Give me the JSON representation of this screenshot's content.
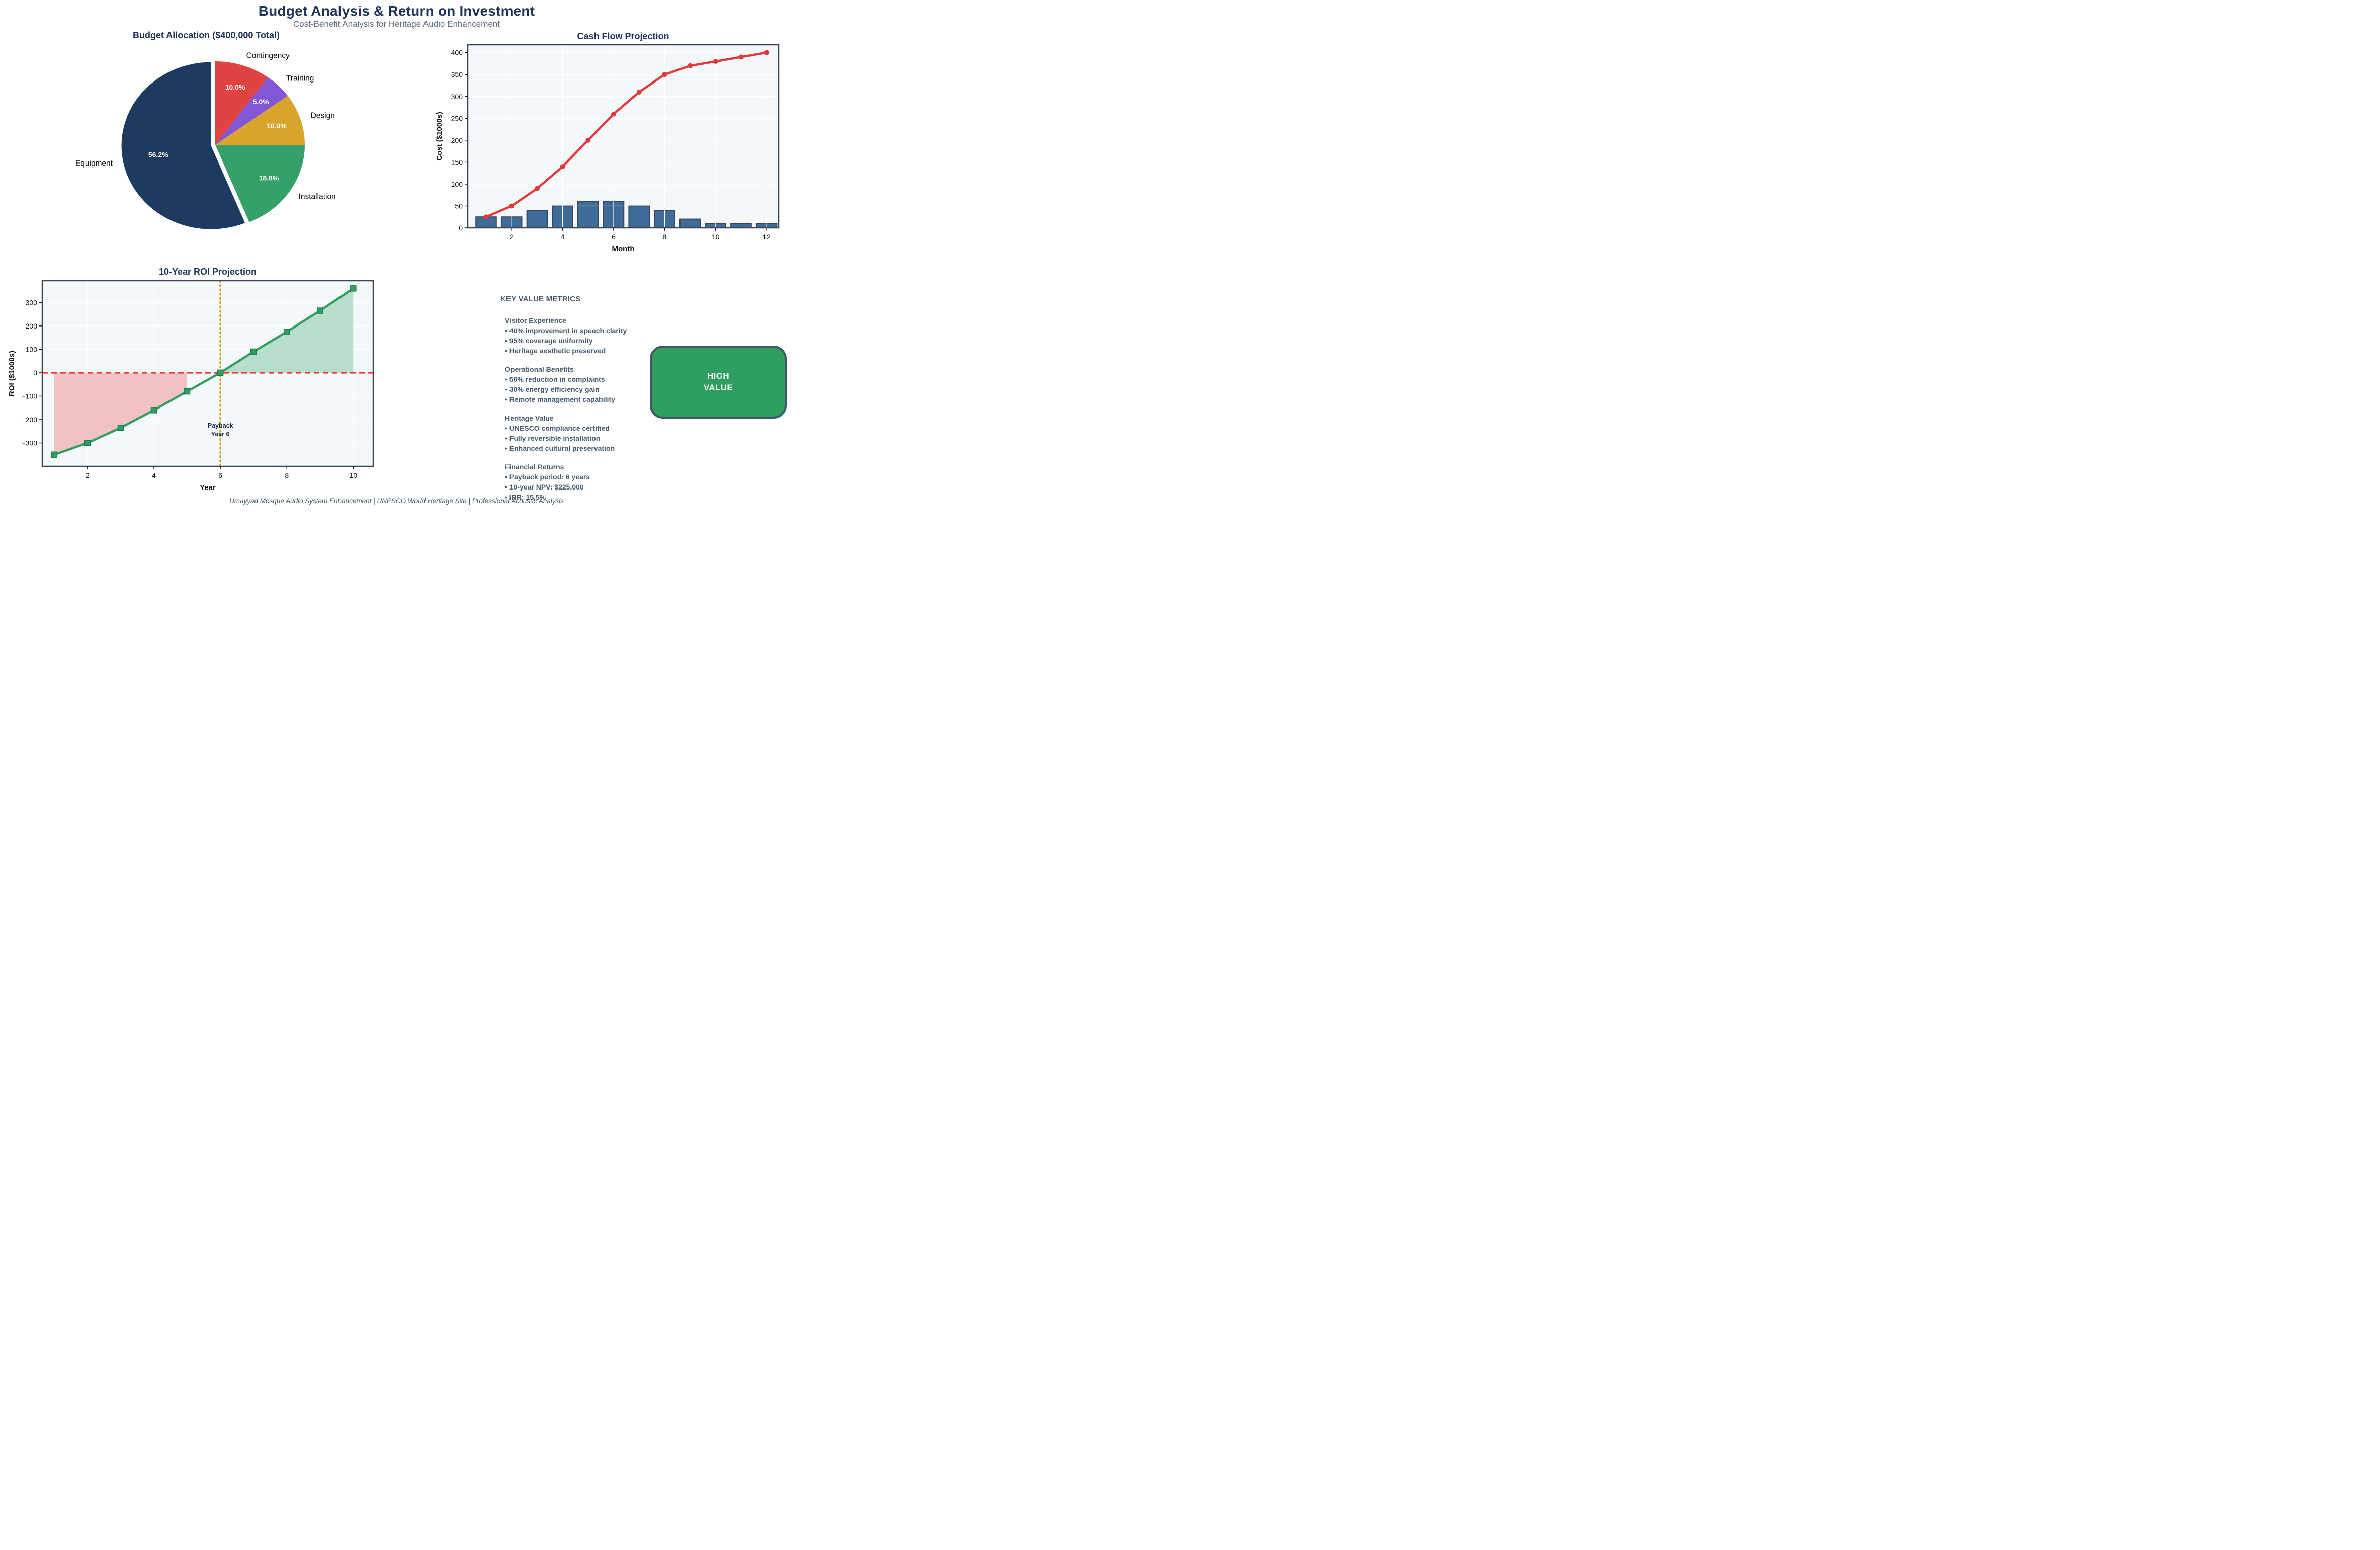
{
  "header": {
    "title": "Budget Analysis & Return on Investment",
    "subtitle": "Cost-Benefit Analysis for Heritage Audio Enhancement"
  },
  "chart_data": [
    {
      "type": "pie",
      "title": "Budget Allocation ($400,000 Total)",
      "start_angle": 90,
      "direction": "clockwise",
      "slices": [
        {
          "label": "Contingency",
          "value": 10.0,
          "pct_label": "10.0%",
          "color": "#e04141",
          "explode": 0
        },
        {
          "label": "Training",
          "value": 5.0,
          "pct_label": "5.0%",
          "color": "#8157d8",
          "explode": 0
        },
        {
          "label": "Design",
          "value": 10.0,
          "pct_label": "10.0%",
          "color": "#d9a42c",
          "explode": 0
        },
        {
          "label": "Installation",
          "value": 18.8,
          "pct_label": "18.8%",
          "color": "#35a169",
          "explode": 0
        },
        {
          "label": "Equipment",
          "value": 56.2,
          "pct_label": "56.2%",
          "color": "#1f3a5f",
          "explode": 0.05
        }
      ]
    },
    {
      "type": "bar+line",
      "title": "Cash Flow Projection",
      "xlabel": "Month",
      "ylabel": "Cost ($1000s)",
      "x": [
        1,
        2,
        3,
        4,
        5,
        6,
        7,
        8,
        9,
        10,
        11,
        12
      ],
      "series": [
        {
          "name": "Monthly Cost",
          "type": "bar",
          "values": [
            25,
            25,
            40,
            50,
            60,
            60,
            50,
            40,
            20,
            10,
            10,
            10
          ],
          "color": "#3e6b97",
          "edge_color": "#3a4656"
        },
        {
          "name": "Cumulative Cost",
          "type": "line",
          "values": [
            25,
            50,
            90,
            140,
            200,
            260,
            310,
            350,
            370,
            380,
            390,
            400
          ],
          "color": "#e3393b"
        }
      ],
      "x_ticks": [
        2,
        4,
        6,
        8,
        10,
        12
      ],
      "y_ticks": [
        0,
        50,
        100,
        150,
        200,
        250,
        300,
        350,
        400
      ],
      "xlim": [
        0.28,
        12.47
      ],
      "ylim": [
        0,
        418
      ],
      "bg": "#f4f8fb",
      "grid_color": "#ffffff"
    },
    {
      "type": "line+area",
      "title": "10-Year ROI Projection",
      "xlabel": "Year",
      "ylabel": "ROI ($1000s)",
      "x": [
        1,
        2,
        3,
        4,
        5,
        6,
        7,
        8,
        9,
        10
      ],
      "values": [
        -350,
        -300,
        -235,
        -160,
        -80,
        0,
        90,
        175,
        265,
        360
      ],
      "line_color": "#2f9e60",
      "marker_edge": "#1e7c4b",
      "neg_fill": "rgba(231,70,70,0.30)",
      "pos_fill": "rgba(46,160,90,0.30)",
      "zero_line": {
        "color": "#e73a3a",
        "style": "dashed",
        "y": 0
      },
      "payback_line": {
        "color": "#d19e22",
        "style": "dotted",
        "x": 6
      },
      "annotation": {
        "lines": [
          "Payback",
          "Year 6"
        ],
        "x": 6,
        "y": -235
      },
      "x_ticks": [
        2,
        4,
        6,
        8,
        10
      ],
      "y_ticks": [
        -300,
        -200,
        -100,
        0,
        100,
        200,
        300
      ],
      "xlim": [
        0.64,
        10.6
      ],
      "ylim": [
        -400,
        393
      ],
      "bg": "#f4f8fb",
      "grid_color": "#ffffff"
    }
  ],
  "metrics": {
    "heading": "KEY VALUE METRICS",
    "sections": [
      {
        "title": "Visitor Experience",
        "bullets": [
          "• 40% improvement in speech clarity",
          "• 95% coverage uniformity",
          "• Heritage aesthetic preserved"
        ]
      },
      {
        "title": "Operational Benefits",
        "bullets": [
          "• 50% reduction in complaints",
          "• 30% energy efficiency gain",
          "• Remote management capability"
        ]
      },
      {
        "title": "Heritage Value",
        "bullets": [
          "• UNESCO compliance certified",
          "• Fully reversible installation",
          "• Enhanced cultural preservation"
        ]
      },
      {
        "title": "Financial Returns",
        "bullets": [
          "• Payback period: 6 years",
          "• 10-year NPV: $225,000",
          "• IRR: 15.5%"
        ]
      }
    ]
  },
  "badge": {
    "lines": [
      "HIGH",
      "VALUE"
    ],
    "bg_color": "#2e9e5f",
    "border_color": "#44566b",
    "text_color": "#ffffff"
  },
  "footer": {
    "text": "Umayyad Mosque Audio System Enhancement | UNESCO World Heritage Site | Professional Acoustic Analysis"
  },
  "palette": {
    "title_navy": "#1e3356",
    "subtitle_gray": "#5d6b7a",
    "slate_text": "#475a6e",
    "axis_spine": "#3a4656",
    "plot_bg": "#f4f8fb"
  }
}
